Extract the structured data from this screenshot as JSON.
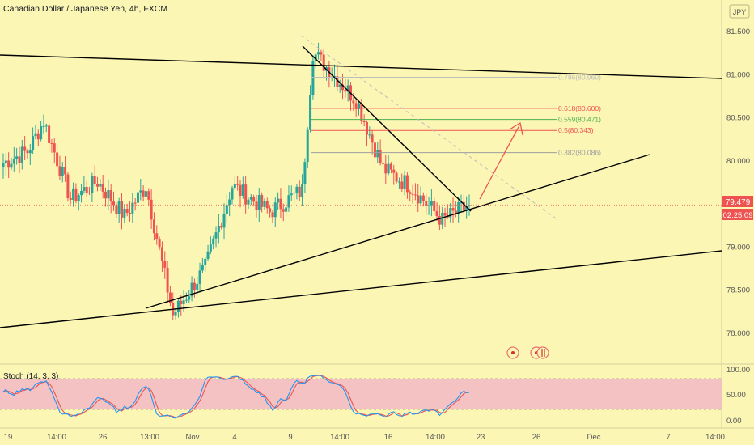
{
  "header": {
    "symbol_title": "Canadian Dollar / Japanese Yen, 4h, FXCM",
    "currency_button": "JPY"
  },
  "price_axis": {
    "ticks": [
      "81.500",
      "81.000",
      "80.500",
      "80.000",
      "79.000",
      "78.500",
      "78.000"
    ],
    "last_price": "79.479",
    "countdown": "02:25:09",
    "colors": {
      "last_price_bg": "#ef5350",
      "countdown_bg": "#ef5350"
    }
  },
  "time_axis": {
    "labels": [
      "19",
      "14:00",
      "26",
      "13:00",
      "Nov",
      "4",
      "9",
      "14:00",
      "16",
      "14:00",
      "23",
      "26",
      "Dec",
      "7",
      "14:00"
    ]
  },
  "fib_levels": [
    {
      "label": "0.786(80.960)",
      "value": 80.96,
      "color": "#bdbdbd"
    },
    {
      "label": "0.618(80.600)",
      "value": 80.6,
      "color": "#ef5350"
    },
    {
      "label": "0.559(80.471)",
      "value": 80.471,
      "color": "#4caf50"
    },
    {
      "label": "0.5(80.343)",
      "value": 80.343,
      "color": "#ef5350"
    },
    {
      "label": "0.382(80.086)",
      "value": 80.086,
      "color": "#9e9e9e"
    }
  ],
  "stoch": {
    "title": "Stoch (14, 3, 3)",
    "ticks": [
      "100.00",
      "50.00",
      "0.00"
    ],
    "colors": {
      "k": "#2196f3",
      "d": "#ef5350",
      "band": "#f2b8c6"
    }
  },
  "colors": {
    "background": "#fcf6b5",
    "up_candle": "#26a69a",
    "down_candle": "#ef5350",
    "trendline": "#000000",
    "forecast_arrow": "#ef5350"
  },
  "chart_data": {
    "type": "candlestick",
    "title": "Canadian Dollar / Japanese Yen, 4h, FXCM",
    "y_unit": "JPY",
    "ylim": [
      77.7,
      81.7
    ],
    "last_price": 79.479,
    "segments": [
      {
        "n": 10,
        "from": 79.95,
        "to": 80.1
      },
      {
        "n": 6,
        "from": 80.1,
        "to": 80.45
      },
      {
        "n": 10,
        "from": 80.45,
        "to": 79.55
      },
      {
        "n": 10,
        "from": 79.55,
        "to": 79.75
      },
      {
        "n": 10,
        "from": 79.75,
        "to": 79.35
      },
      {
        "n": 8,
        "from": 79.35,
        "to": 79.7
      },
      {
        "n": 10,
        "from": 79.7,
        "to": 78.2
      },
      {
        "n": 12,
        "from": 78.2,
        "to": 78.75
      },
      {
        "n": 10,
        "from": 78.75,
        "to": 79.7
      },
      {
        "n": 14,
        "from": 79.7,
        "to": 79.4
      },
      {
        "n": 12,
        "from": 79.4,
        "to": 79.65
      },
      {
        "n": 4,
        "from": 79.65,
        "to": 81.25
      },
      {
        "n": 16,
        "from": 81.25,
        "to": 80.7
      },
      {
        "n": 10,
        "from": 80.7,
        "to": 79.9
      },
      {
        "n": 10,
        "from": 79.9,
        "to": 79.7
      },
      {
        "n": 12,
        "from": 79.7,
        "to": 79.3
      },
      {
        "n": 10,
        "from": 79.3,
        "to": 79.48
      }
    ]
  }
}
